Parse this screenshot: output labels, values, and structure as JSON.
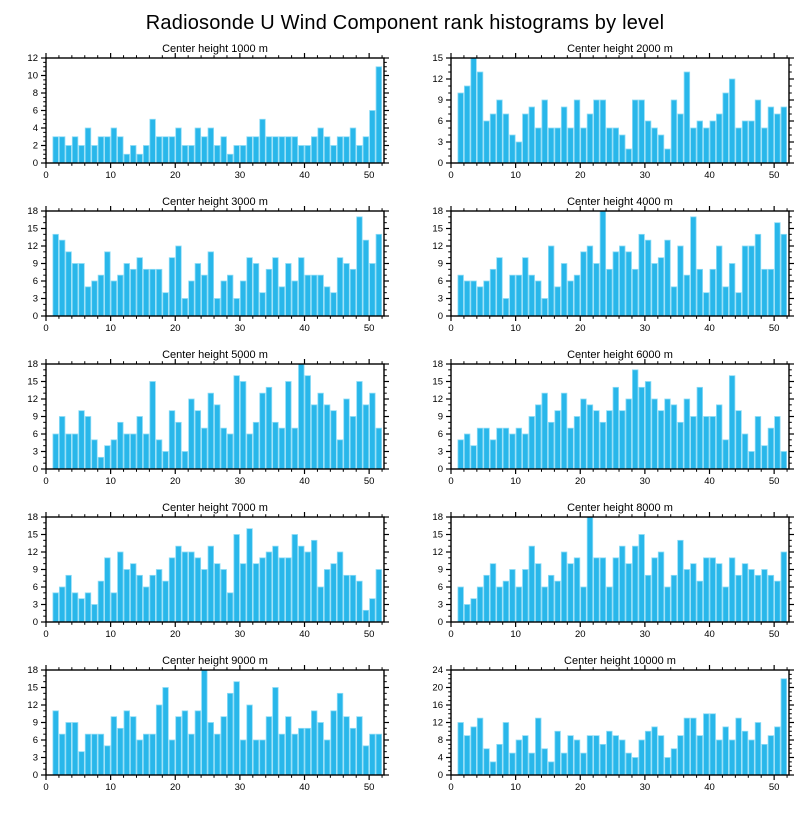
{
  "figure": {
    "title": "Radiosonde U Wind Component rank histograms by level"
  },
  "style": {
    "background": "#ffffff",
    "bar_color": "#29B7EA",
    "bar_highlight": "#8EDCF6",
    "axis_color": "#000000",
    "text_color": "#000000"
  },
  "chart_data": [
    {
      "type": "bar",
      "title": "Center height 1000 m",
      "xlabel": "",
      "ylabel": "",
      "xlim": [
        0,
        52.3
      ],
      "ylim": [
        0,
        12
      ],
      "xticks": [
        0,
        10,
        20,
        30,
        40,
        50
      ],
      "yticks": [
        0,
        2,
        4,
        6,
        8,
        10,
        12
      ],
      "x_minor_step": 2,
      "y_minor_step": 0.5,
      "x_start_rank": 1,
      "values": [
        3,
        3,
        2,
        3,
        2,
        4,
        2,
        3,
        3,
        4,
        3,
        1,
        2,
        1,
        2,
        5,
        3,
        3,
        3,
        4,
        2,
        2,
        4,
        3,
        4,
        2,
        3,
        1,
        2,
        2,
        3,
        3,
        5,
        3,
        3,
        3,
        3,
        3,
        2,
        2,
        3,
        4,
        3,
        2,
        3,
        3,
        4,
        2,
        3,
        6,
        11
      ]
    },
    {
      "type": "bar",
      "title": "Center height 2000 m",
      "xlabel": "",
      "ylabel": "",
      "xlim": [
        0,
        52.3
      ],
      "ylim": [
        0,
        15
      ],
      "xticks": [
        0,
        10,
        20,
        30,
        40,
        50
      ],
      "yticks": [
        0,
        3,
        6,
        9,
        12,
        15
      ],
      "x_minor_step": 2,
      "y_minor_step": 1,
      "x_start_rank": 1,
      "values": [
        10,
        11,
        15,
        13,
        6,
        7,
        9,
        7,
        4,
        3,
        7,
        8,
        5,
        9,
        5,
        5,
        8,
        5,
        9,
        5,
        7,
        9,
        9,
        5,
        5,
        4,
        2,
        9,
        9,
        6,
        5,
        4,
        2,
        9,
        7,
        13,
        5,
        6,
        5,
        6,
        7,
        10,
        12,
        5,
        6,
        6,
        9,
        5,
        8,
        7,
        8
      ]
    },
    {
      "type": "bar",
      "title": "Center height 3000 m",
      "xlabel": "",
      "ylabel": "",
      "xlim": [
        0,
        52.3
      ],
      "ylim": [
        0,
        18
      ],
      "xticks": [
        0,
        10,
        20,
        30,
        40,
        50
      ],
      "yticks": [
        0,
        3,
        6,
        9,
        12,
        15,
        18
      ],
      "x_minor_step": 2,
      "y_minor_step": 1,
      "x_start_rank": 1,
      "values": [
        14,
        13,
        11,
        9,
        9,
        5,
        6,
        7,
        11,
        6,
        7,
        9,
        8,
        10,
        8,
        8,
        8,
        4,
        10,
        12,
        3,
        6,
        9,
        7,
        11,
        3,
        6,
        7,
        3,
        6,
        10,
        9,
        4,
        8,
        10,
        5,
        9,
        6,
        10,
        7,
        7,
        7,
        5,
        4,
        10,
        9,
        8,
        17,
        13,
        9,
        14
      ]
    },
    {
      "type": "bar",
      "title": "Center height 4000 m",
      "xlabel": "",
      "ylabel": "",
      "xlim": [
        0,
        52.3
      ],
      "ylim": [
        0,
        18
      ],
      "xticks": [
        0,
        10,
        20,
        30,
        40,
        50
      ],
      "yticks": [
        0,
        3,
        6,
        9,
        12,
        15,
        18
      ],
      "x_minor_step": 2,
      "y_minor_step": 1,
      "x_start_rank": 1,
      "values": [
        7,
        6,
        6,
        5,
        6,
        8,
        10,
        3,
        7,
        7,
        10,
        7,
        6,
        3,
        12,
        5,
        9,
        6,
        7,
        11,
        12,
        9,
        18,
        8,
        11,
        12,
        11,
        8,
        14,
        13,
        9,
        10,
        13,
        5,
        12,
        7,
        17,
        8,
        4,
        8,
        12,
        5,
        9,
        4,
        12,
        12,
        14,
        8,
        8,
        16,
        14
      ]
    },
    {
      "type": "bar",
      "title": "Center height 5000 m",
      "xlabel": "",
      "ylabel": "",
      "xlim": [
        0,
        52.3
      ],
      "ylim": [
        0,
        18
      ],
      "xticks": [
        0,
        10,
        20,
        30,
        40,
        50
      ],
      "yticks": [
        0,
        3,
        6,
        9,
        12,
        15,
        18
      ],
      "x_minor_step": 2,
      "y_minor_step": 1,
      "x_start_rank": 1,
      "values": [
        6,
        9,
        6,
        6,
        10,
        9,
        5,
        2,
        4,
        5,
        8,
        6,
        6,
        9,
        6,
        15,
        5,
        3,
        10,
        8,
        3,
        12,
        10,
        7,
        13,
        11,
        7,
        6,
        16,
        15,
        6,
        8,
        13,
        14,
        8,
        7,
        15,
        7,
        18,
        16,
        11,
        13,
        11,
        10,
        5,
        12,
        9,
        15,
        11,
        13,
        7
      ]
    },
    {
      "type": "bar",
      "title": "Center height 6000 m",
      "xlabel": "",
      "ylabel": "",
      "xlim": [
        0,
        52.3
      ],
      "ylim": [
        0,
        18
      ],
      "xticks": [
        0,
        10,
        20,
        30,
        40,
        50
      ],
      "yticks": [
        0,
        3,
        6,
        9,
        12,
        15,
        18
      ],
      "x_minor_step": 2,
      "y_minor_step": 1,
      "x_start_rank": 1,
      "values": [
        5,
        6,
        4,
        7,
        7,
        5,
        7,
        7,
        6,
        7,
        6,
        9,
        11,
        13,
        8,
        10,
        13,
        7,
        9,
        12,
        11,
        10,
        8,
        10,
        14,
        10,
        12,
        17,
        14,
        15,
        12,
        10,
        12,
        11,
        8,
        12,
        9,
        14,
        9,
        9,
        11,
        5,
        16,
        10,
        6,
        3,
        9,
        4,
        7,
        9,
        3
      ]
    },
    {
      "type": "bar",
      "title": "Center height 7000 m",
      "xlabel": "",
      "ylabel": "",
      "xlim": [
        0,
        52.3
      ],
      "ylim": [
        0,
        18
      ],
      "xticks": [
        0,
        10,
        20,
        30,
        40,
        50
      ],
      "yticks": [
        0,
        3,
        6,
        9,
        12,
        15,
        18
      ],
      "x_minor_step": 2,
      "y_minor_step": 1,
      "x_start_rank": 1,
      "values": [
        5,
        6,
        8,
        5,
        4,
        5,
        3,
        7,
        11,
        5,
        12,
        9,
        10,
        8,
        6,
        8,
        9,
        7,
        11,
        13,
        12,
        12,
        11,
        9,
        13,
        10,
        9,
        5,
        15,
        10,
        16,
        10,
        11,
        12,
        13,
        11,
        11,
        15,
        13,
        12,
        14,
        6,
        9,
        10,
        12,
        8,
        8,
        7,
        2,
        4,
        9
      ]
    },
    {
      "type": "bar",
      "title": "Center height 8000 m",
      "xlabel": "",
      "ylabel": "",
      "xlim": [
        0,
        52.3
      ],
      "ylim": [
        0,
        18
      ],
      "xticks": [
        0,
        10,
        20,
        30,
        40,
        50
      ],
      "yticks": [
        0,
        3,
        6,
        9,
        12,
        15,
        18
      ],
      "x_minor_step": 2,
      "y_minor_step": 1,
      "x_start_rank": 1,
      "values": [
        6,
        3,
        4,
        6,
        8,
        10,
        6,
        7,
        9,
        6,
        9,
        13,
        10,
        6,
        8,
        7,
        12,
        10,
        11,
        6,
        18,
        11,
        11,
        6,
        11,
        13,
        10,
        13,
        15,
        8,
        11,
        12,
        6,
        8,
        14,
        9,
        10,
        7,
        11,
        11,
        10,
        6,
        11,
        8,
        10,
        9,
        8,
        9,
        8,
        7,
        12
      ]
    },
    {
      "type": "bar",
      "title": "Center height 9000 m",
      "xlabel": "",
      "ylabel": "",
      "xlim": [
        0,
        52.3
      ],
      "ylim": [
        0,
        18
      ],
      "xticks": [
        0,
        10,
        20,
        30,
        40,
        50
      ],
      "yticks": [
        0,
        3,
        6,
        9,
        12,
        15,
        18
      ],
      "x_minor_step": 2,
      "y_minor_step": 1,
      "x_start_rank": 1,
      "values": [
        11,
        7,
        9,
        9,
        4,
        7,
        7,
        7,
        5,
        10,
        8,
        11,
        10,
        6,
        7,
        7,
        12,
        15,
        6,
        10,
        11,
        7,
        11,
        18,
        9,
        7,
        10,
        14,
        16,
        6,
        12,
        6,
        6,
        10,
        15,
        7,
        10,
        7,
        8,
        8,
        11,
        9,
        6,
        11,
        14,
        10,
        8,
        10,
        5,
        7,
        7
      ]
    },
    {
      "type": "bar",
      "title": "Center height 10000 m",
      "xlabel": "",
      "ylabel": "",
      "xlim": [
        0,
        52.3
      ],
      "ylim": [
        0,
        24
      ],
      "xticks": [
        0,
        10,
        20,
        30,
        40,
        50
      ],
      "yticks": [
        0,
        4,
        8,
        12,
        16,
        20,
        24
      ],
      "x_minor_step": 2,
      "y_minor_step": 1,
      "x_start_rank": 1,
      "values": [
        12,
        9,
        11,
        13,
        6,
        3,
        7,
        12,
        5,
        8,
        9,
        5,
        13,
        6,
        3,
        10,
        5,
        9,
        8,
        5,
        9,
        9,
        7,
        10,
        9,
        8,
        5,
        4,
        8,
        10,
        11,
        9,
        4,
        6,
        9,
        13,
        13,
        9,
        14,
        14,
        8,
        11,
        8,
        13,
        10,
        8,
        12,
        7,
        9,
        11,
        22
      ]
    }
  ]
}
